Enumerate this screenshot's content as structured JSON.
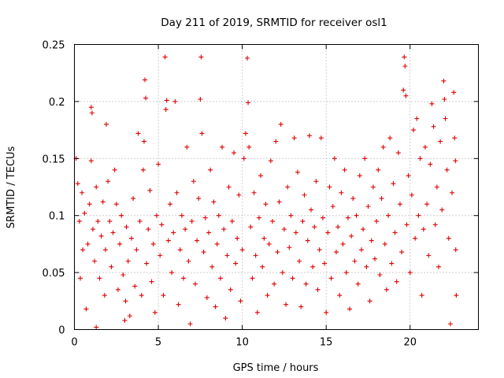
{
  "chart_data": {
    "type": "scatter",
    "title": "Day 211 of 2019, SRMTID for receiver osl1",
    "xlabel": "GPS time / hours",
    "ylabel": "SRMTID / TECUs",
    "xlim": [
      0,
      24.07
    ],
    "ylim": [
      0,
      0.25
    ],
    "x_ticks": [
      0,
      5,
      10,
      15,
      20
    ],
    "y_ticks": [
      0,
      0.05,
      0.1,
      0.15,
      0.2,
      0.25
    ],
    "x_tick_labels": [
      "0",
      "5",
      "10",
      "15",
      "20"
    ],
    "y_tick_labels": [
      "0",
      "0.05",
      "0.1",
      "0.15",
      "0.2",
      "0.25"
    ],
    "grid": true,
    "marker": "+",
    "series": [
      {
        "name": "SRMTID",
        "color": "#e00000",
        "note": "dense cloud of points (x in 0-22.7 h), representative sample",
        "points": [
          [
            0.1,
            0.15
          ],
          [
            0.2,
            0.128
          ],
          [
            0.3,
            0.095
          ],
          [
            0.35,
            0.045
          ],
          [
            0.45,
            0.12
          ],
          [
            0.5,
            0.07
          ],
          [
            0.6,
            0.102
          ],
          [
            0.7,
            0.018
          ],
          [
            0.8,
            0.075
          ],
          [
            0.9,
            0.11
          ],
          [
            1.0,
            0.148
          ],
          [
            1.0,
            0.195
          ],
          [
            1.05,
            0.19
          ],
          [
            1.1,
            0.088
          ],
          [
            1.2,
            0.06
          ],
          [
            1.3,
            0.125
          ],
          [
            1.3,
            0.002
          ],
          [
            1.4,
            0.095
          ],
          [
            1.5,
            0.045
          ],
          [
            1.6,
            0.082
          ],
          [
            1.7,
            0.112
          ],
          [
            1.8,
            0.03
          ],
          [
            1.85,
            0.07
          ],
          [
            1.9,
            0.18
          ],
          [
            2.0,
            0.13
          ],
          [
            2.1,
            0.095
          ],
          [
            2.2,
            0.055
          ],
          [
            2.3,
            0.085
          ],
          [
            2.4,
            0.14
          ],
          [
            2.5,
            0.11
          ],
          [
            2.6,
            0.035
          ],
          [
            2.7,
            0.075
          ],
          [
            2.8,
            0.1
          ],
          [
            2.9,
            0.048
          ],
          [
            3.0,
            0.008
          ],
          [
            3.05,
            0.025
          ],
          [
            3.1,
            0.09
          ],
          [
            3.2,
            0.06
          ],
          [
            3.3,
            0.012
          ],
          [
            3.4,
            0.08
          ],
          [
            3.5,
            0.115
          ],
          [
            3.6,
            0.038
          ],
          [
            3.7,
            0.07
          ],
          [
            3.8,
            0.172
          ],
          [
            3.9,
            0.095
          ],
          [
            4.0,
            0.03
          ],
          [
            4.1,
            0.14
          ],
          [
            4.15,
            0.165
          ],
          [
            4.2,
            0.219
          ],
          [
            4.25,
            0.203
          ],
          [
            4.3,
            0.058
          ],
          [
            4.4,
            0.088
          ],
          [
            4.5,
            0.122
          ],
          [
            4.6,
            0.042
          ],
          [
            4.7,
            0.075
          ],
          [
            4.8,
            0.015
          ],
          [
            4.9,
            0.1
          ],
          [
            5.0,
            0.145
          ],
          [
            5.1,
            0.065
          ],
          [
            5.2,
            0.092
          ],
          [
            5.3,
            0.03
          ],
          [
            5.4,
            0.239
          ],
          [
            5.45,
            0.193
          ],
          [
            5.5,
            0.201
          ],
          [
            5.6,
            0.078
          ],
          [
            5.7,
            0.11
          ],
          [
            5.8,
            0.05
          ],
          [
            5.9,
            0.085
          ],
          [
            6.0,
            0.2
          ],
          [
            6.1,
            0.12
          ],
          [
            6.2,
            0.022
          ],
          [
            6.3,
            0.07
          ],
          [
            6.4,
            0.1
          ],
          [
            6.5,
            0.045
          ],
          [
            6.6,
            0.088
          ],
          [
            6.7,
            0.16
          ],
          [
            6.8,
            0.06
          ],
          [
            6.9,
            0.005
          ],
          [
            7.0,
            0.095
          ],
          [
            7.1,
            0.13
          ],
          [
            7.2,
            0.04
          ],
          [
            7.3,
            0.078
          ],
          [
            7.4,
            0.115
          ],
          [
            7.5,
            0.202
          ],
          [
            7.55,
            0.239
          ],
          [
            7.6,
            0.172
          ],
          [
            7.7,
            0.068
          ],
          [
            7.8,
            0.098
          ],
          [
            7.9,
            0.028
          ],
          [
            8.0,
            0.085
          ],
          [
            8.1,
            0.14
          ],
          [
            8.2,
            0.055
          ],
          [
            8.3,
            0.112
          ],
          [
            8.4,
            0.02
          ],
          [
            8.5,
            0.075
          ],
          [
            8.6,
            0.1
          ],
          [
            8.7,
            0.045
          ],
          [
            8.8,
            0.16
          ],
          [
            8.9,
            0.088
          ],
          [
            9.0,
            0.01
          ],
          [
            9.1,
            0.065
          ],
          [
            9.2,
            0.125
          ],
          [
            9.3,
            0.035
          ],
          [
            9.4,
            0.095
          ],
          [
            9.5,
            0.155
          ],
          [
            9.6,
            0.058
          ],
          [
            9.7,
            0.08
          ],
          [
            9.8,
            0.118
          ],
          [
            9.9,
            0.025
          ],
          [
            10.0,
            0.07
          ],
          [
            10.1,
            0.15
          ],
          [
            10.2,
            0.172
          ],
          [
            10.3,
            0.238
          ],
          [
            10.35,
            0.199
          ],
          [
            10.4,
            0.16
          ],
          [
            10.5,
            0.09
          ],
          [
            10.6,
            0.045
          ],
          [
            10.7,
            0.12
          ],
          [
            10.8,
            0.065
          ],
          [
            10.9,
            0.015
          ],
          [
            11.0,
            0.098
          ],
          [
            11.1,
            0.135
          ],
          [
            11.2,
            0.055
          ],
          [
            11.3,
            0.08
          ],
          [
            11.4,
            0.11
          ],
          [
            11.5,
            0.03
          ],
          [
            11.6,
            0.075
          ],
          [
            11.7,
            0.148
          ],
          [
            11.8,
            0.095
          ],
          [
            11.9,
            0.04
          ],
          [
            12.0,
            0.165
          ],
          [
            12.1,
            0.068
          ],
          [
            12.2,
            0.112
          ],
          [
            12.3,
            0.18
          ],
          [
            12.4,
            0.05
          ],
          [
            12.5,
            0.088
          ],
          [
            12.6,
            0.022
          ],
          [
            12.7,
            0.125
          ],
          [
            12.8,
            0.072
          ],
          [
            12.9,
            0.1
          ],
          [
            13.0,
            0.045
          ],
          [
            13.1,
            0.168
          ],
          [
            13.2,
            0.085
          ],
          [
            13.3,
            0.138
          ],
          [
            13.4,
            0.06
          ],
          [
            13.5,
            0.02
          ],
          [
            13.6,
            0.095
          ],
          [
            13.7,
            0.118
          ],
          [
            13.8,
            0.04
          ],
          [
            13.9,
            0.078
          ],
          [
            14.0,
            0.17
          ],
          [
            14.1,
            0.105
          ],
          [
            14.2,
            0.055
          ],
          [
            14.3,
            0.09
          ],
          [
            14.4,
            0.13
          ],
          [
            14.5,
            0.035
          ],
          [
            14.6,
            0.07
          ],
          [
            14.7,
            0.168
          ],
          [
            14.8,
            0.098
          ],
          [
            14.9,
            0.058
          ],
          [
            15.0,
            0.015
          ],
          [
            15.1,
            0.085
          ],
          [
            15.2,
            0.125
          ],
          [
            15.3,
            0.045
          ],
          [
            15.4,
            0.108
          ],
          [
            15.5,
            0.15
          ],
          [
            15.6,
            0.068
          ],
          [
            15.7,
            0.09
          ],
          [
            15.8,
            0.03
          ],
          [
            15.9,
            0.12
          ],
          [
            16.0,
            0.075
          ],
          [
            16.1,
            0.14
          ],
          [
            16.2,
            0.05
          ],
          [
            16.3,
            0.098
          ],
          [
            16.4,
            0.018
          ],
          [
            16.5,
            0.082
          ],
          [
            16.6,
            0.115
          ],
          [
            16.7,
            0.06
          ],
          [
            16.8,
            0.1
          ],
          [
            16.9,
            0.04
          ],
          [
            17.0,
            0.135
          ],
          [
            17.1,
            0.07
          ],
          [
            17.2,
            0.088
          ],
          [
            17.3,
            0.15
          ],
          [
            17.4,
            0.055
          ],
          [
            17.5,
            0.108
          ],
          [
            17.6,
            0.025
          ],
          [
            17.7,
            0.078
          ],
          [
            17.8,
            0.125
          ],
          [
            17.9,
            0.062
          ],
          [
            18.0,
            0.095
          ],
          [
            18.1,
            0.14
          ],
          [
            18.2,
            0.048
          ],
          [
            18.3,
            0.115
          ],
          [
            18.4,
            0.16
          ],
          [
            18.5,
            0.075
          ],
          [
            18.6,
            0.035
          ],
          [
            18.7,
            0.1
          ],
          [
            18.8,
            0.168
          ],
          [
            18.9,
            0.058
          ],
          [
            19.0,
            0.128
          ],
          [
            19.1,
            0.085
          ],
          [
            19.2,
            0.042
          ],
          [
            19.3,
            0.155
          ],
          [
            19.4,
            0.11
          ],
          [
            19.5,
            0.068
          ],
          [
            19.6,
            0.21
          ],
          [
            19.65,
            0.239
          ],
          [
            19.7,
            0.231
          ],
          [
            19.75,
            0.205
          ],
          [
            19.8,
            0.092
          ],
          [
            19.9,
            0.135
          ],
          [
            20.0,
            0.05
          ],
          [
            20.1,
            0.118
          ],
          [
            20.2,
            0.175
          ],
          [
            20.3,
            0.08
          ],
          [
            20.4,
            0.185
          ],
          [
            20.5,
            0.1
          ],
          [
            20.6,
            0.15
          ],
          [
            20.7,
            0.03
          ],
          [
            20.8,
            0.088
          ],
          [
            20.9,
            0.16
          ],
          [
            21.0,
            0.11
          ],
          [
            21.1,
            0.065
          ],
          [
            21.2,
            0.145
          ],
          [
            21.3,
            0.198
          ],
          [
            21.4,
            0.178
          ],
          [
            21.5,
            0.092
          ],
          [
            21.6,
            0.125
          ],
          [
            21.7,
            0.055
          ],
          [
            21.8,
            0.165
          ],
          [
            21.9,
            0.105
          ],
          [
            22.0,
            0.218
          ],
          [
            22.05,
            0.202
          ],
          [
            22.1,
            0.185
          ],
          [
            22.2,
            0.14
          ],
          [
            22.3,
            0.08
          ],
          [
            22.4,
            0.005
          ],
          [
            22.5,
            0.12
          ],
          [
            22.6,
            0.208
          ],
          [
            22.65,
            0.168
          ],
          [
            22.7,
            0.148
          ],
          [
            22.72,
            0.07
          ],
          [
            22.75,
            0.03
          ]
        ]
      }
    ]
  }
}
